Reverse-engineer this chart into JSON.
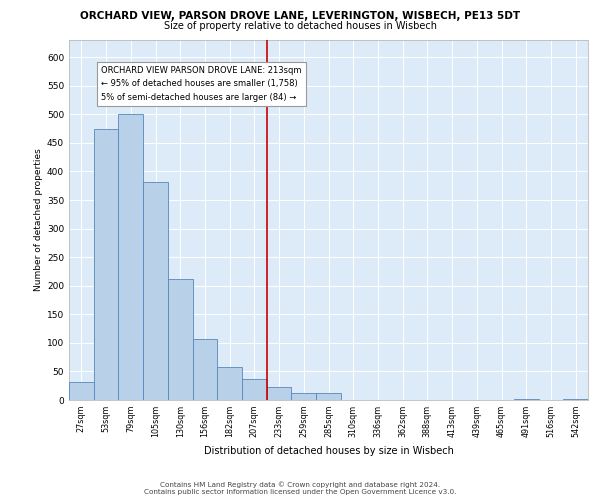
{
  "title": "ORCHARD VIEW, PARSON DROVE LANE, LEVERINGTON, WISBECH, PE13 5DT",
  "subtitle": "Size of property relative to detached houses in Wisbech",
  "xlabel": "Distribution of detached houses by size in Wisbech",
  "ylabel": "Number of detached properties",
  "bin_labels": [
    "27sqm",
    "53sqm",
    "79sqm",
    "105sqm",
    "130sqm",
    "156sqm",
    "182sqm",
    "207sqm",
    "233sqm",
    "259sqm",
    "285sqm",
    "310sqm",
    "336sqm",
    "362sqm",
    "388sqm",
    "413sqm",
    "439sqm",
    "465sqm",
    "491sqm",
    "516sqm",
    "542sqm"
  ],
  "bar_heights": [
    32,
    475,
    500,
    382,
    211,
    106,
    58,
    37,
    22,
    13,
    12,
    0,
    0,
    0,
    0,
    0,
    0,
    0,
    2,
    0,
    2
  ],
  "bar_color": "#b8d0e8",
  "bar_edge_color": "#5588bb",
  "vline_color": "#cc0000",
  "annotation_line1": "ORCHARD VIEW PARSON DROVE LANE: 213sqm",
  "annotation_line2": "← 95% of detached houses are smaller (1,758)",
  "annotation_line3": "5% of semi-detached houses are larger (84) →",
  "ylim": [
    0,
    630
  ],
  "yticks": [
    0,
    50,
    100,
    150,
    200,
    250,
    300,
    350,
    400,
    450,
    500,
    550,
    600
  ],
  "plot_bg_color": "#ddeaf7",
  "footer_line1": "Contains HM Land Registry data © Crown copyright and database right 2024.",
  "footer_line2": "Contains public sector information licensed under the Open Government Licence v3.0."
}
